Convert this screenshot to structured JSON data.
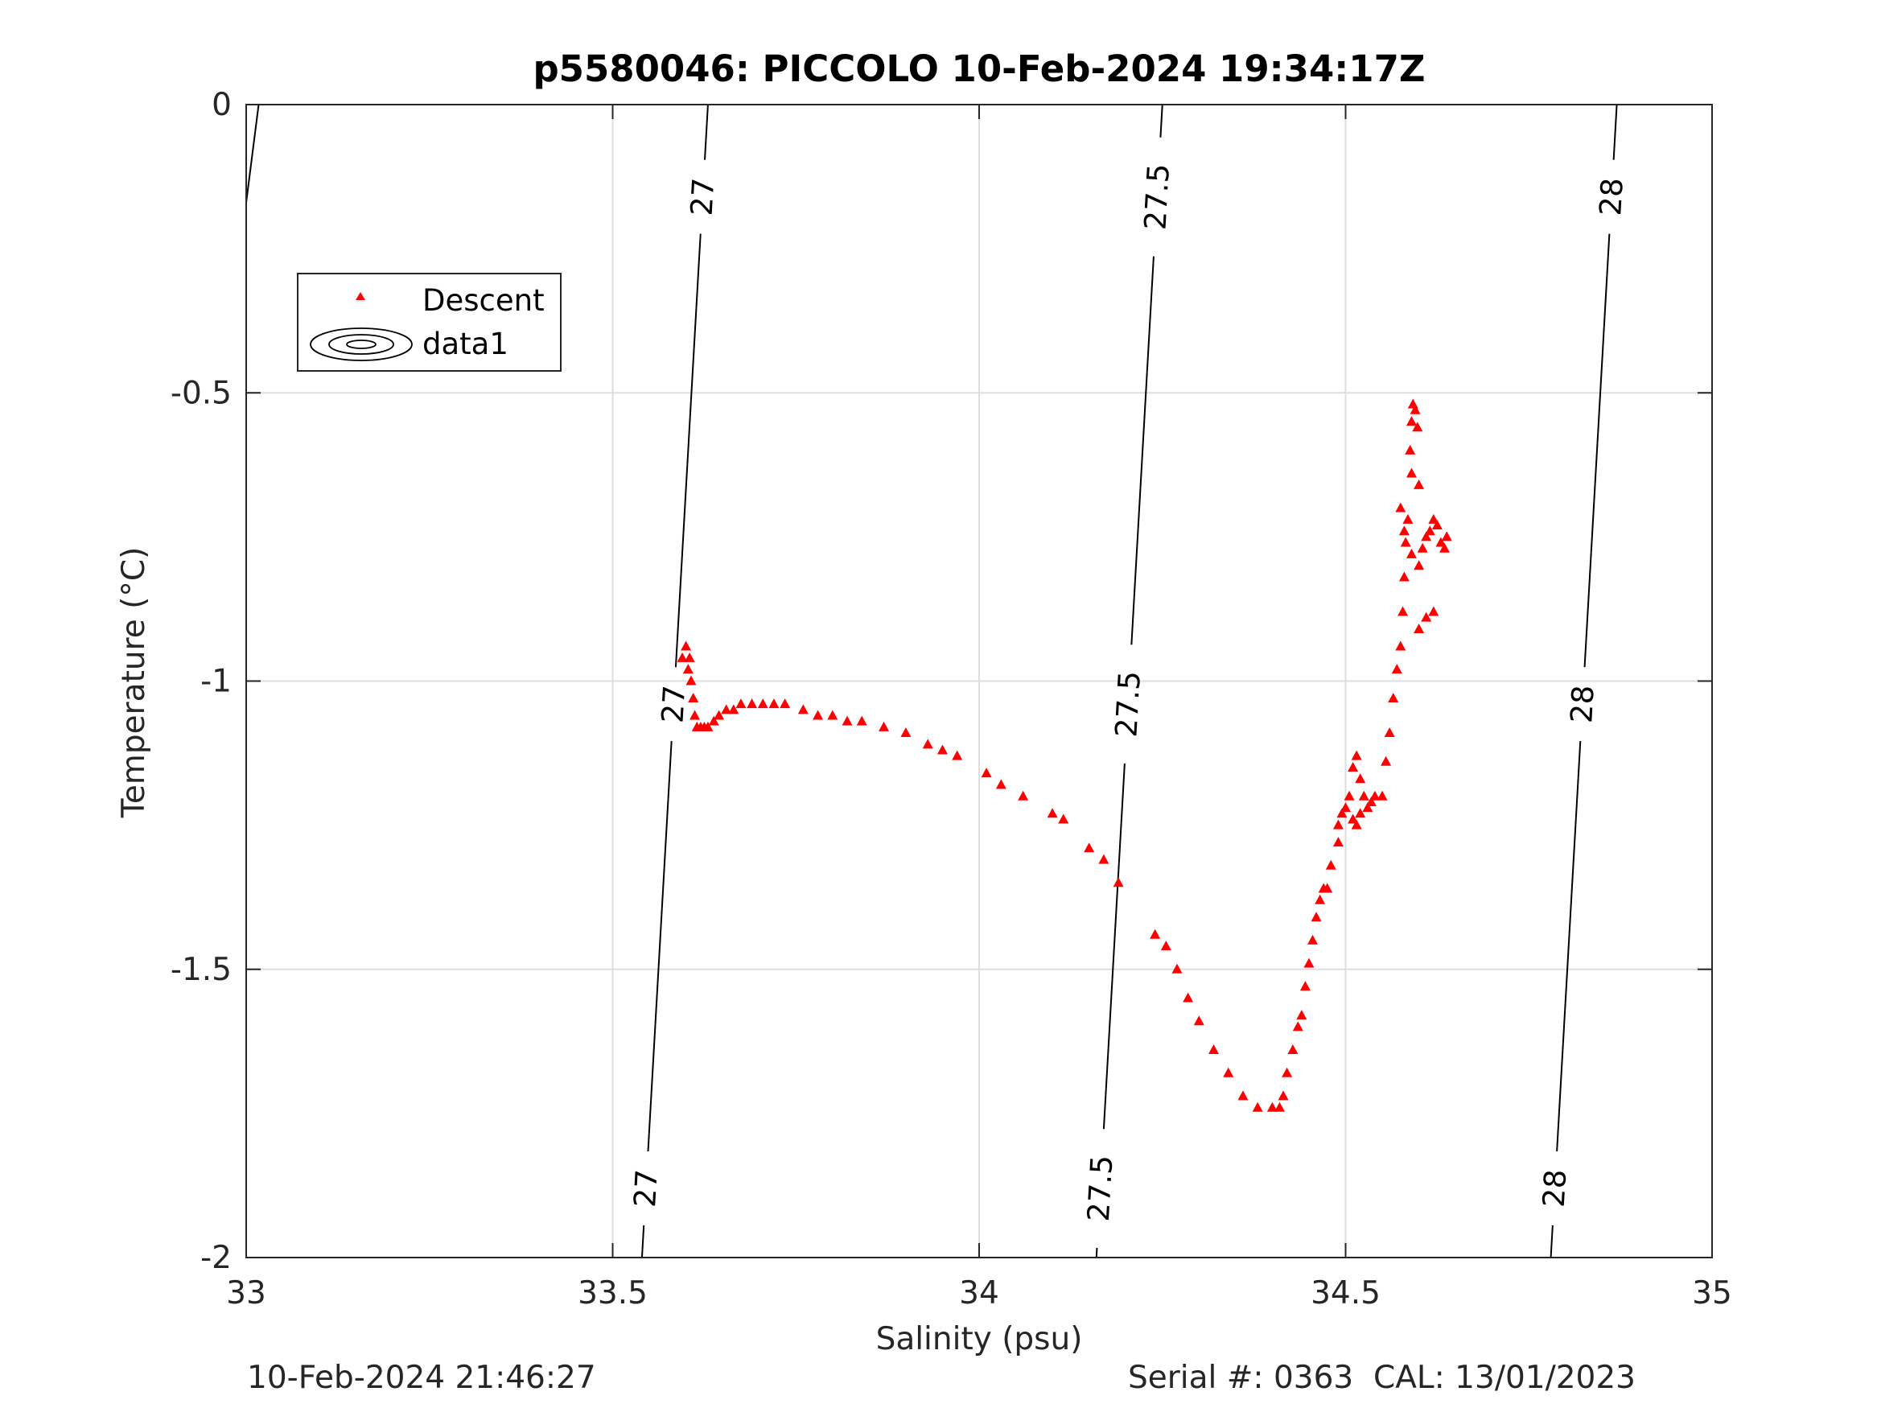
{
  "chart_data": {
    "type": "scatter",
    "title": "p5580046: PICCOLO 10-Feb-2024 19:34:17Z",
    "xlabel": "Salinity (psu)",
    "ylabel": "Temperature (°C)",
    "xlim": [
      33,
      35
    ],
    "ylim": [
      -2,
      0
    ],
    "xticks": [
      33,
      33.5,
      34,
      34.5,
      35
    ],
    "xtick_labels": [
      "33",
      "33.5",
      "34",
      "34.5",
      "35"
    ],
    "yticks": [
      -2,
      -1.5,
      -1,
      -0.5,
      0
    ],
    "ytick_labels": [
      "-2",
      "-1.5",
      "-1",
      "-0.5",
      "0"
    ],
    "grid": true,
    "legend_position": "upper-left",
    "legend": [
      {
        "label": "Descent",
        "marker": "triangle",
        "color": "#ff0000"
      },
      {
        "label": "data1",
        "marker": "contour",
        "color": "#000000"
      }
    ],
    "series": [
      {
        "name": "Descent",
        "marker": "triangle",
        "color": "#ff0000",
        "x": [
          33.595,
          33.6,
          33.605,
          33.603,
          33.607,
          33.61,
          33.612,
          33.615,
          33.62,
          33.625,
          33.63,
          33.638,
          33.645,
          33.655,
          33.665,
          33.675,
          33.69,
          33.705,
          33.72,
          33.735,
          33.76,
          33.78,
          33.8,
          33.82,
          33.84,
          33.87,
          33.9,
          33.93,
          33.95,
          33.97,
          34.01,
          34.03,
          34.06,
          34.1,
          34.115,
          34.15,
          34.17,
          34.19,
          34.24,
          34.255,
          34.27,
          34.285,
          34.3,
          34.32,
          34.34,
          34.36,
          34.38,
          34.4,
          34.41,
          34.415,
          34.42,
          34.428,
          34.435,
          34.44,
          34.445,
          34.45,
          34.455,
          34.46,
          34.465,
          34.47,
          34.475,
          34.48,
          34.49,
          34.49,
          34.495,
          34.5,
          34.505,
          34.51,
          34.515,
          34.52,
          34.525,
          34.52,
          34.51,
          34.515,
          34.53,
          34.535,
          34.54,
          34.55,
          34.555,
          34.56,
          34.565,
          34.57,
          34.575,
          34.578,
          34.58,
          34.582,
          34.585,
          34.588,
          34.59,
          34.592,
          34.595,
          34.598,
          34.575,
          34.58,
          34.59,
          34.6,
          34.605,
          34.61,
          34.615,
          34.62,
          34.625,
          34.63,
          34.635,
          34.638,
          34.6,
          34.61,
          34.62,
          34.59,
          34.6
        ],
        "y": [
          -0.96,
          -0.94,
          -0.96,
          -0.98,
          -1.0,
          -1.03,
          -1.06,
          -1.08,
          -1.08,
          -1.08,
          -1.08,
          -1.07,
          -1.06,
          -1.05,
          -1.05,
          -1.04,
          -1.04,
          -1.04,
          -1.04,
          -1.04,
          -1.05,
          -1.06,
          -1.06,
          -1.07,
          -1.07,
          -1.08,
          -1.09,
          -1.11,
          -1.12,
          -1.13,
          -1.16,
          -1.18,
          -1.2,
          -1.23,
          -1.24,
          -1.29,
          -1.31,
          -1.35,
          -1.44,
          -1.46,
          -1.5,
          -1.55,
          -1.59,
          -1.64,
          -1.68,
          -1.72,
          -1.74,
          -1.74,
          -1.74,
          -1.72,
          -1.68,
          -1.64,
          -1.6,
          -1.58,
          -1.53,
          -1.49,
          -1.45,
          -1.41,
          -1.38,
          -1.36,
          -1.36,
          -1.32,
          -1.28,
          -1.25,
          -1.23,
          -1.22,
          -1.2,
          -1.15,
          -1.13,
          -1.17,
          -1.2,
          -1.23,
          -1.24,
          -1.25,
          -1.22,
          -1.21,
          -1.2,
          -1.2,
          -1.14,
          -1.09,
          -1.03,
          -0.98,
          -0.94,
          -0.88,
          -0.82,
          -0.76,
          -0.72,
          -0.6,
          -0.55,
          -0.52,
          -0.53,
          -0.56,
          -0.7,
          -0.74,
          -0.78,
          -0.8,
          -0.77,
          -0.75,
          -0.74,
          -0.72,
          -0.73,
          -0.76,
          -0.77,
          -0.75,
          -0.91,
          -0.89,
          -0.88,
          -0.64,
          -0.66
        ]
      }
    ],
    "contours": [
      {
        "label": "27",
        "x_at_top": 33.63,
        "x_at_bottom": 33.54
      },
      {
        "label": "27.5",
        "x_at_top": 34.25,
        "x_at_bottom": 34.16
      },
      {
        "label": "28",
        "x_at_top": 34.87,
        "x_at_bottom": 34.78
      }
    ]
  },
  "footer": {
    "left": "10-Feb-2024 21:46:27",
    "right": "Serial #: 0363  CAL: 13/01/2023"
  }
}
